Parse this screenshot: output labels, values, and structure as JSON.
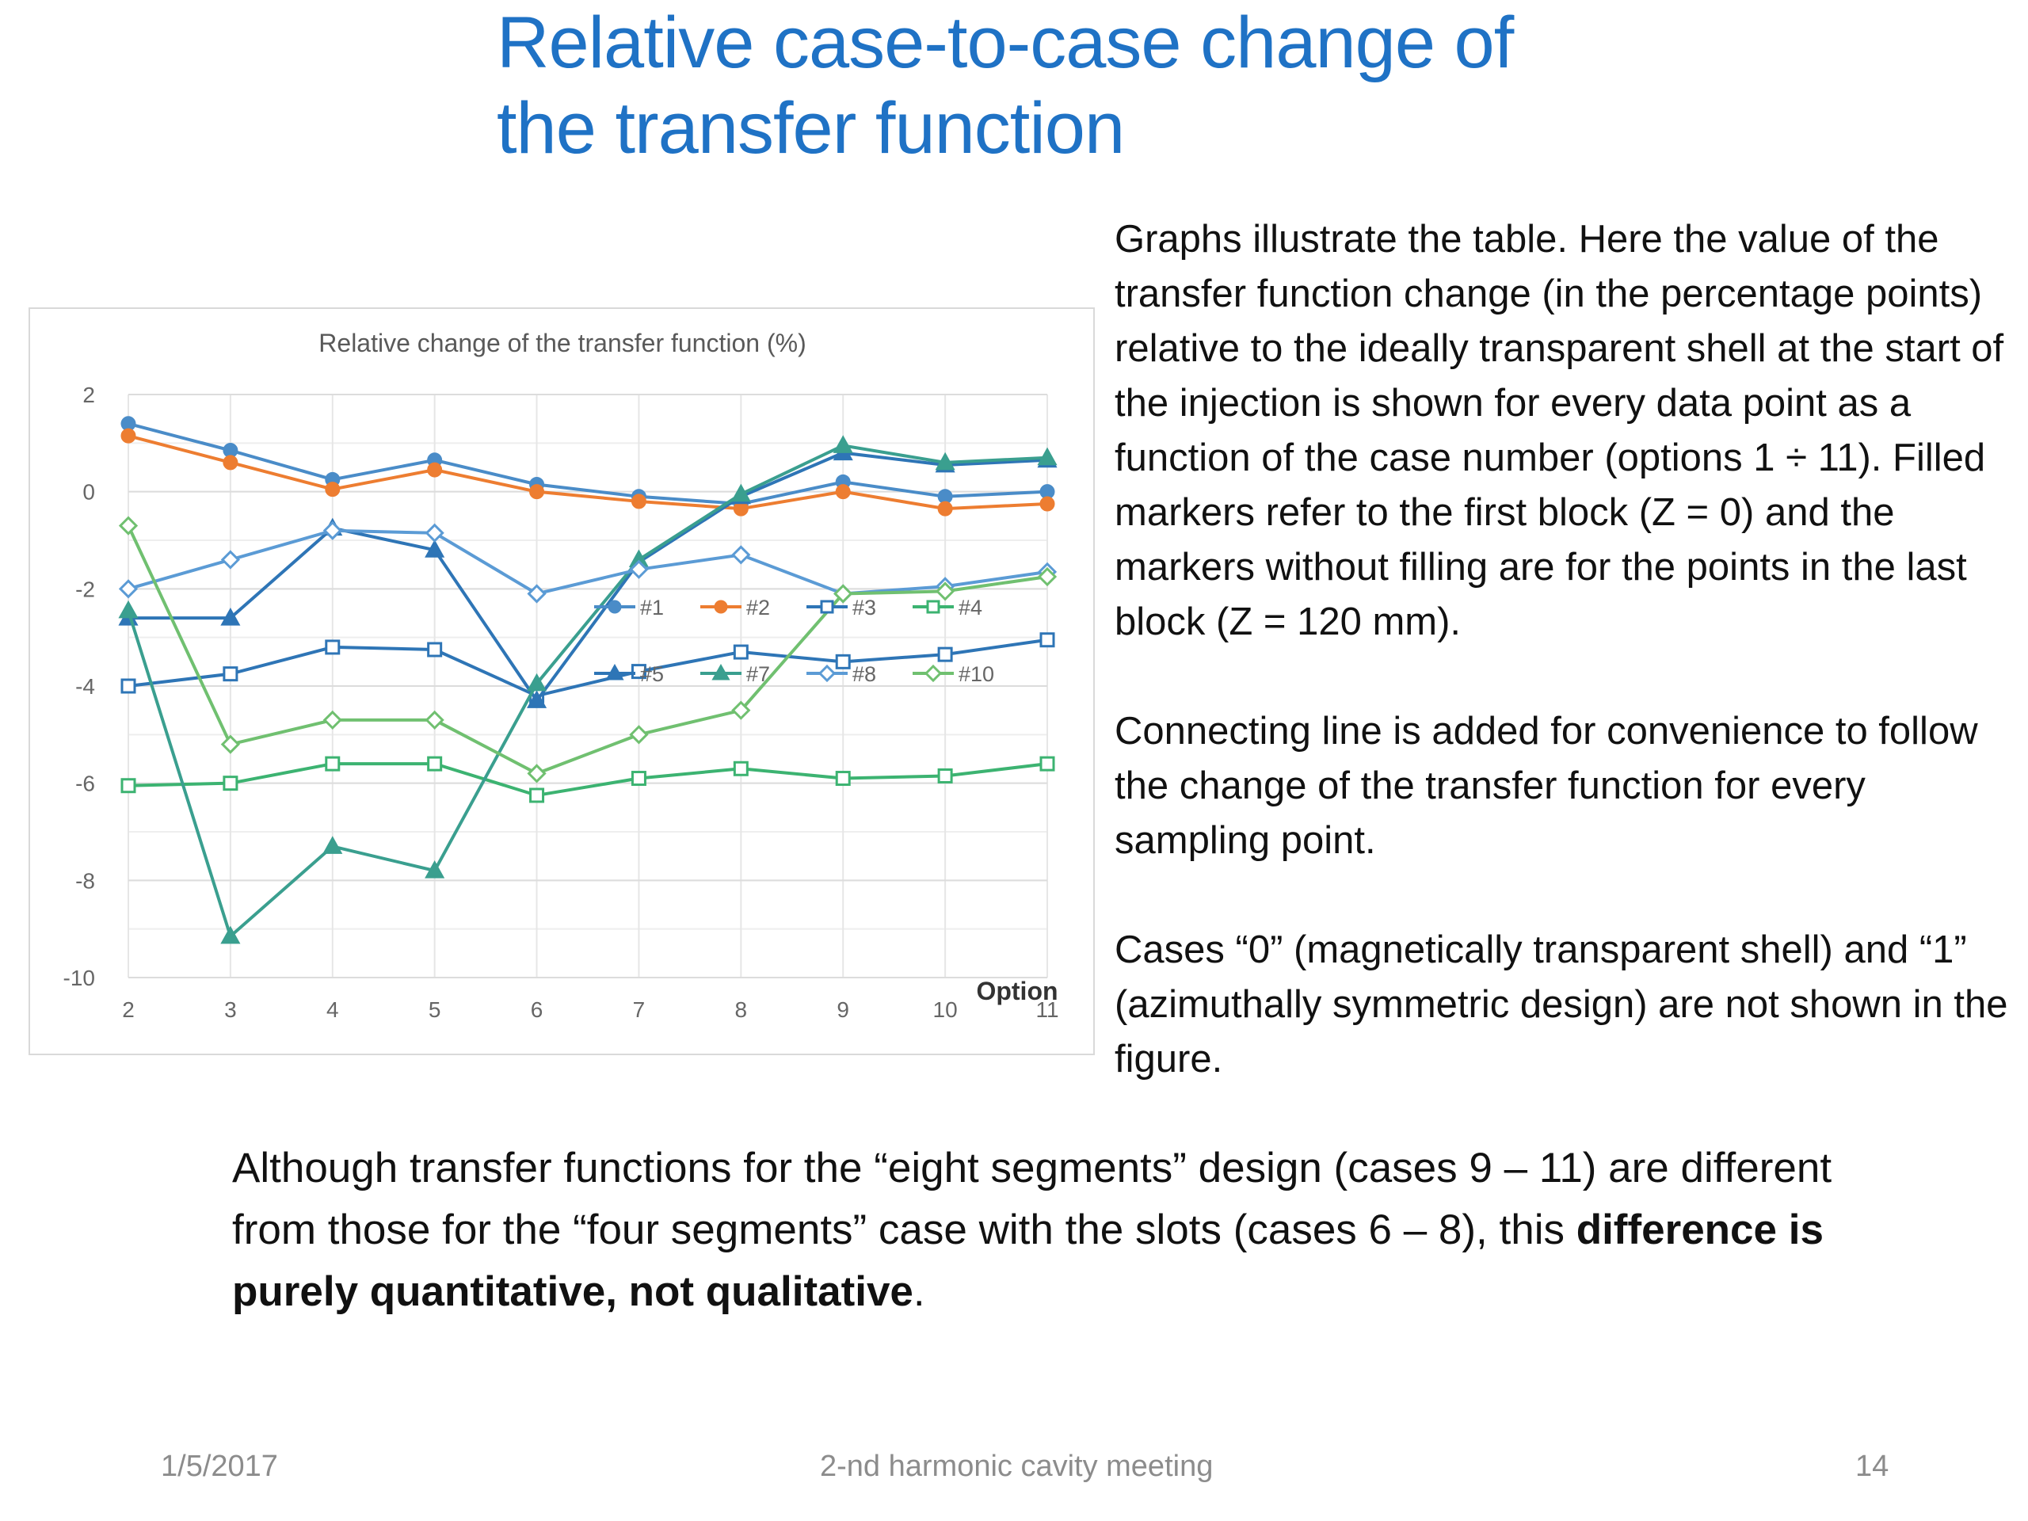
{
  "slide": {
    "title_line1": "Relative case-to-case change of",
    "title_line2": "the transfer function",
    "paragraph1": "Graphs illustrate the table. Here the value of the transfer function change (in the percentage points) relative to the ideally transparent shell at the start of the injection is shown for every data point as a function of the case number (options 1 ÷ 11). Filled markers refer to the first block (Z = 0) and the markers without filling are for the points in the last block (Z = 120 mm).",
    "paragraph2": "Connecting line is added for convenience to follow the change of the transfer function for every sampling point.",
    "paragraph3": "Cases “0” (magnetically transparent shell) and “1” (azimuthally symmetric design) are not shown in the figure.",
    "bottom_text_pre": "Although transfer functions for the “eight segments” design (cases 9 – 11) are different from those for the “four segments” case with the slots (cases 6 – 8), this ",
    "bottom_text_bold": "difference is purely quantitative, not qualitative",
    "bottom_text_post": ".",
    "footer_date": "1/5/2017",
    "footer_center": "2-nd harmonic cavity meeting",
    "footer_page": "14"
  },
  "chart_data": {
    "type": "line",
    "title": "Relative change of the transfer function (%)",
    "xlabel": "Option",
    "ylabel": "",
    "x": [
      2,
      3,
      4,
      5,
      6,
      7,
      8,
      9,
      10,
      11
    ],
    "xlim": [
      2,
      11
    ],
    "ylim": [
      -10,
      2
    ],
    "yticks": [
      -10,
      -8,
      -6,
      -4,
      -2,
      0,
      2
    ],
    "grid": true,
    "legend_position": "inside-bottom-center",
    "series": [
      {
        "name": "#1",
        "color": "#4a8cc8",
        "marker": "circle",
        "filled": true,
        "values": [
          1.4,
          0.85,
          0.25,
          0.65,
          0.15,
          -0.1,
          -0.25,
          0.2,
          -0.1,
          0.0
        ]
      },
      {
        "name": "#2",
        "color": "#ed7d31",
        "marker": "circle",
        "filled": true,
        "values": [
          1.15,
          0.6,
          0.05,
          0.45,
          0.0,
          -0.2,
          -0.35,
          0.0,
          -0.35,
          -0.25
        ]
      },
      {
        "name": "#3",
        "color": "#2e75b6",
        "marker": "square",
        "filled": false,
        "values": [
          -4.0,
          -3.75,
          -3.2,
          -3.25,
          -4.2,
          -3.7,
          -3.3,
          -3.5,
          -3.35,
          -3.05
        ]
      },
      {
        "name": "#4",
        "color": "#3cb371",
        "marker": "square",
        "filled": false,
        "values": [
          -6.05,
          -6.0,
          -5.6,
          -5.6,
          -6.25,
          -5.9,
          -5.7,
          -5.9,
          -5.85,
          -5.6
        ]
      },
      {
        "name": "#5",
        "color": "#2e75b6",
        "marker": "triangle",
        "filled": true,
        "values": [
          -2.6,
          -2.6,
          -0.75,
          -1.2,
          -4.3,
          -1.45,
          -0.1,
          0.8,
          0.55,
          0.65
        ]
      },
      {
        "name": "#7",
        "color": "#3a9f8f",
        "marker": "triangle",
        "filled": true,
        "values": [
          -2.45,
          -9.15,
          -7.3,
          -7.8,
          -3.95,
          -1.4,
          -0.05,
          0.95,
          0.6,
          0.7
        ]
      },
      {
        "name": "#8",
        "color": "#5b9bd5",
        "marker": "diamond",
        "filled": false,
        "values": [
          -2.0,
          -1.4,
          -0.8,
          -0.85,
          -2.1,
          -1.6,
          -1.3,
          -2.1,
          -1.95,
          -1.65
        ]
      },
      {
        "name": "#10",
        "color": "#70c070",
        "marker": "diamond",
        "filled": false,
        "values": [
          -0.7,
          -5.2,
          -4.7,
          -4.7,
          -5.8,
          -5.0,
          -4.5,
          -2.1,
          -2.05,
          -1.75
        ]
      }
    ]
  }
}
